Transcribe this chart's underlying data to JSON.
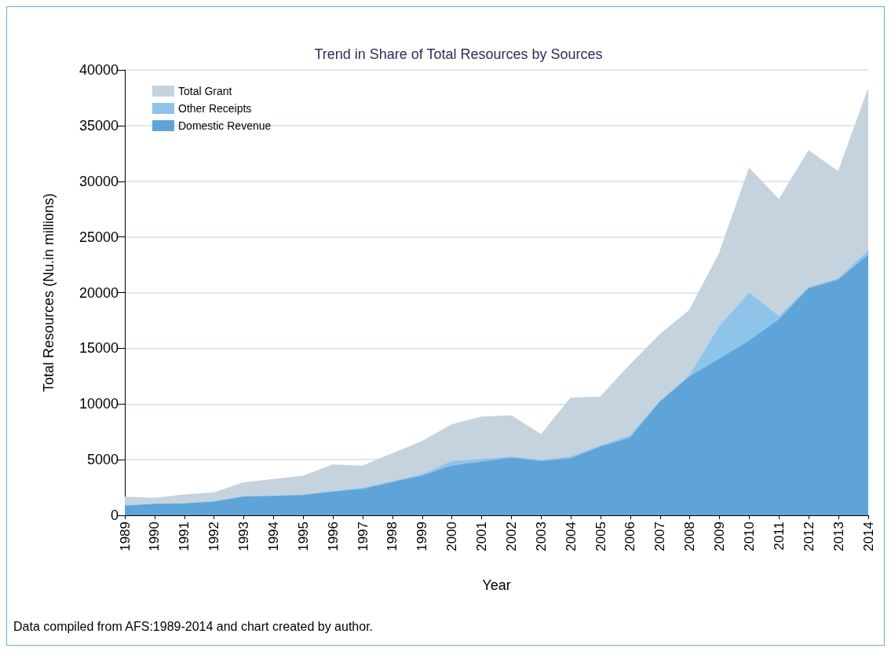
{
  "chart_data": {
    "type": "area",
    "stacked": true,
    "title": "Trend in Share of Total Resources by Sources",
    "xlabel": "Year",
    "ylabel": "Total Resources (Nu.in millions)",
    "categories": [
      "1989",
      "1990",
      "1991",
      "1992",
      "1993",
      "1994",
      "1995",
      "1996",
      "1997",
      "1998",
      "1999",
      "2000",
      "2001",
      "2002",
      "2003",
      "2004",
      "2005",
      "2006",
      "2007",
      "2008",
      "2009",
      "2010",
      "2011",
      "2012",
      "2013",
      "2014"
    ],
    "series": [
      {
        "name": "Domestic Revenue",
        "color": "#5ea4d9",
        "values": [
          800,
          950,
          1000,
          1150,
          1600,
          1650,
          1750,
          2050,
          2300,
          2900,
          3500,
          4400,
          4750,
          5100,
          4800,
          5050,
          6100,
          6900,
          10100,
          12400,
          14000,
          15600,
          17500,
          20300,
          21100,
          23300
        ]
      },
      {
        "name": "Other Receipts",
        "color": "#8ec4ea",
        "values": [
          0,
          0,
          0,
          50,
          50,
          50,
          50,
          50,
          100,
          100,
          100,
          400,
          250,
          100,
          100,
          150,
          100,
          200,
          100,
          100,
          2900,
          4300,
          300,
          100,
          100,
          400
        ]
      },
      {
        "name": "Total Grant",
        "color": "#c5d3df",
        "values": [
          800,
          550,
          800,
          800,
          1250,
          1500,
          1700,
          2400,
          2000,
          2500,
          3000,
          3300,
          3800,
          3700,
          2300,
          5300,
          4400,
          6400,
          6000,
          5900,
          6600,
          11200,
          10500,
          12300,
          9600,
          14500
        ]
      }
    ],
    "ylim": [
      0,
      40000
    ],
    "yticks": [
      0,
      5000,
      10000,
      15000,
      20000,
      25000,
      30000,
      35000,
      40000
    ],
    "grid": "y",
    "legend": "top left",
    "annotations": [
      "Data compiled from AFS:1989-2014 and chart created by author."
    ]
  }
}
